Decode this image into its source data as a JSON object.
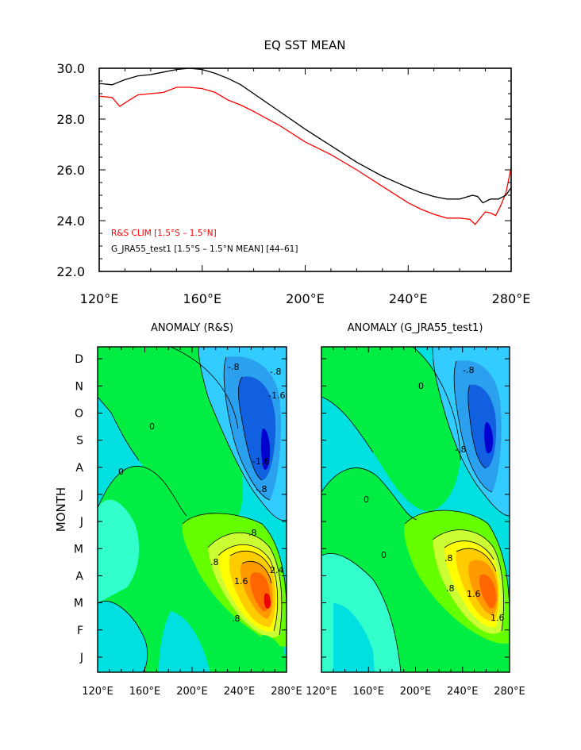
{
  "chart_data": [
    {
      "type": "line",
      "title": "EQ SST MEAN",
      "xlabel": "",
      "ylabel": "",
      "xlim": [
        120,
        280
      ],
      "ylim": [
        22.0,
        30.0
      ],
      "x_tick_labels": [
        "120°E",
        "160°E",
        "200°E",
        "240°E",
        "280°E"
      ],
      "x_ticks": [
        120,
        160,
        200,
        240,
        280
      ],
      "y_tick_labels": [
        "22.0",
        "24.0",
        "26.0",
        "28.0",
        "30.0"
      ],
      "y_ticks": [
        22,
        24,
        26,
        28,
        30
      ],
      "grid": false,
      "legend_placement": "bottom-left",
      "series": [
        {
          "name": "R&S CLIM [1.5°S – 1.5°N]",
          "color": "#ff0000",
          "x": [
            120,
            125,
            128,
            131,
            135,
            140,
            145,
            150,
            155,
            160,
            165,
            170,
            175,
            180,
            190,
            200,
            210,
            220,
            230,
            240,
            245,
            250,
            255,
            260,
            264,
            266,
            268,
            270,
            272,
            274,
            276,
            278,
            280
          ],
          "y": [
            28.9,
            28.85,
            28.5,
            28.7,
            28.95,
            29.0,
            29.05,
            29.25,
            29.25,
            29.2,
            29.05,
            28.75,
            28.55,
            28.3,
            27.75,
            27.1,
            26.6,
            26.0,
            25.35,
            24.7,
            24.45,
            24.25,
            24.1,
            24.1,
            24.05,
            23.85,
            24.1,
            24.35,
            24.3,
            24.2,
            24.6,
            25.1,
            26.1
          ]
        },
        {
          "name": "G_JRA55_test1 [1.5°S – 1.5°N MEAN] [44–61]",
          "color": "#000000",
          "x": [
            120,
            125,
            130,
            135,
            140,
            145,
            150,
            155,
            160,
            165,
            170,
            175,
            180,
            190,
            200,
            210,
            220,
            230,
            240,
            245,
            250,
            255,
            260,
            265,
            267,
            269,
            272,
            275,
            278,
            280
          ],
          "y": [
            29.4,
            29.35,
            29.55,
            29.7,
            29.75,
            29.85,
            29.95,
            30.0,
            29.95,
            29.8,
            29.6,
            29.35,
            29.0,
            28.3,
            27.6,
            26.95,
            26.3,
            25.75,
            25.3,
            25.1,
            24.95,
            24.85,
            24.85,
            25.0,
            24.95,
            24.7,
            24.85,
            24.85,
            25.0,
            25.3
          ]
        }
      ],
      "legend": [
        {
          "text": "R&S CLIM [1.5°S – 1.5°N]",
          "color": "#ff0000"
        },
        {
          "text": "G_JRA55_test1 [1.5°S – 1.5°N MEAN] [44–61]",
          "color": "#000000"
        }
      ]
    },
    {
      "type": "heatmap",
      "title": "ANOMALY (R&S)",
      "xlabel": "",
      "ylabel": "MONTH",
      "xlim": [
        120,
        280
      ],
      "x_tick_labels": [
        "120°E",
        "160°E",
        "200°E",
        "240°E",
        "280°E"
      ],
      "x_ticks": [
        120,
        160,
        200,
        240,
        280
      ],
      "y_tick_labels": [
        "J",
        "F",
        "M",
        "A",
        "M",
        "J",
        "J",
        "A",
        "S",
        "O",
        "N",
        "D"
      ],
      "contour_labels": [
        "-.8",
        "-.8",
        "-.8",
        "-1.6",
        "-1.6",
        "0",
        "0",
        ".8",
        ".8",
        "1.6",
        "2.4",
        ".8"
      ],
      "warm_peak": {
        "lon": 265,
        "month": "M",
        "value": 2.9
      },
      "cold_peak": {
        "lon": 262,
        "month": "S",
        "value": -2.5
      },
      "color_scale": [
        "#0000d0",
        "#1060e0",
        "#2aa0ee",
        "#33ccff",
        "#00e0e0",
        "#33ffcc",
        "#00ee44",
        "#66ff00",
        "#ccff33",
        "#ffff00",
        "#ffcc00",
        "#ff9900",
        "#ff6600",
        "#ee0000"
      ]
    },
    {
      "type": "heatmap",
      "title": "ANOMALY (G_JRA55_test1)",
      "xlabel": "",
      "ylabel": "",
      "xlim": [
        120,
        280
      ],
      "x_tick_labels": [
        "120°E",
        "160°E",
        "200°E",
        "240°E",
        "280°E"
      ],
      "x_ticks": [
        120,
        160,
        200,
        240,
        280
      ],
      "contour_labels": [
        "-.8",
        "-.8",
        "0",
        "0",
        "0",
        ".8",
        ".8",
        "1.6",
        "1.6"
      ],
      "warm_peak": {
        "lon": 262,
        "month": "A",
        "value": 2.2
      },
      "cold_peak": {
        "lon": 265,
        "month": "S",
        "value": -2.1
      },
      "color_scale": [
        "#0000d0",
        "#1060e0",
        "#2aa0ee",
        "#33ccff",
        "#00e0e0",
        "#33ffcc",
        "#00ee44",
        "#66ff00",
        "#ccff33",
        "#ffff00",
        "#ffcc00",
        "#ff9900",
        "#ff6600",
        "#ee0000"
      ]
    }
  ]
}
